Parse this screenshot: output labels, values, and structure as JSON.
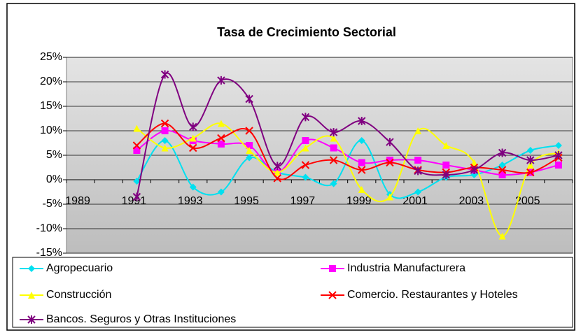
{
  "chart_data": {
    "type": "line",
    "title": "Tasa de Crecimiento Sectorial",
    "categories": [
      "1989",
      null,
      "1991",
      null,
      "1993",
      null,
      "1995",
      null,
      "1997",
      null,
      "1999",
      null,
      "2001",
      null,
      "2003",
      null,
      "2005",
      null
    ],
    "series": [
      {
        "name": "Agropecuario",
        "color": "#00e0f0",
        "marker": "diamond",
        "values": [
          null,
          null,
          -0.3,
          8,
          -1.5,
          -2.5,
          4.5,
          1.5,
          0.5,
          -0.8,
          8,
          -3,
          -2.5,
          0.5,
          1,
          3,
          6,
          7
        ]
      },
      {
        "name": "Industria Manufacturera",
        "color": "#ff00ff",
        "marker": "square",
        "values": [
          null,
          null,
          6,
          10,
          8,
          7.3,
          7,
          1.5,
          8,
          6.5,
          3.5,
          4,
          4,
          3,
          2,
          1,
          1.5,
          3
        ]
      },
      {
        "name": "Construcción",
        "color": "#ffff00",
        "marker": "triangle",
        "values": [
          null,
          null,
          10.5,
          6.5,
          8.5,
          11.5,
          6,
          1.5,
          6.5,
          8.5,
          -2,
          -3.5,
          10,
          7,
          3.5,
          -11.5,
          3,
          5.5
        ]
      },
      {
        "name": "Comercio. Restaurantes y Hoteles",
        "color": "#ff0000",
        "marker": "x",
        "values": [
          null,
          null,
          7,
          11.5,
          6.5,
          8.5,
          10,
          0.3,
          3,
          4,
          2,
          3.5,
          2,
          1.5,
          2.5,
          2,
          1.5,
          4.5
        ]
      },
      {
        "name": "Bancos. Seguros y Otras Instituciones",
        "color": "#800080",
        "marker": "star",
        "values": [
          null,
          null,
          -3.5,
          21.5,
          10.8,
          20.3,
          16.5,
          2.8,
          12.8,
          9.7,
          12,
          7.7,
          1.8,
          1,
          2,
          5.5,
          4,
          5
        ]
      }
    ],
    "ylim": [
      -15,
      25
    ],
    "yticks": [
      {
        "value": -15,
        "label": "-15%"
      },
      {
        "value": -10,
        "label": "-10%"
      },
      {
        "value": -5,
        "label": "-5%"
      },
      {
        "value": 0,
        "label": "0%"
      },
      {
        "value": 5,
        "label": "5%"
      },
      {
        "value": 10,
        "label": "10%"
      },
      {
        "value": 15,
        "label": "15%"
      },
      {
        "value": 20,
        "label": "20%"
      },
      {
        "value": 25,
        "label": "25%"
      }
    ],
    "grid": true,
    "smooth": true,
    "legend": "bottom"
  }
}
